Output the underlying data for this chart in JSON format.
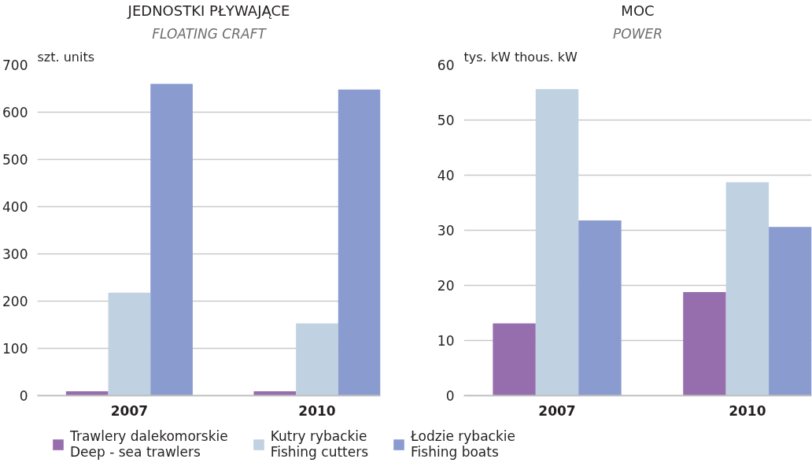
{
  "chart_data": [
    {
      "type": "bar",
      "title": "JEDNOSTKI PŁYWAJĄCE",
      "subtitle": "FLOATING CRAFT",
      "ylabel": "szt. units",
      "categories": [
        "2007",
        "2010"
      ],
      "series": [
        {
          "name": "Trawlery dalekomorskie\nDeep - sea trawlers",
          "color": "#966dad",
          "values": [
            9,
            9
          ]
        },
        {
          "name": "Kutry rybackie\nFishing cutters",
          "color": "#c0d1e1",
          "values": [
            218,
            153
          ]
        },
        {
          "name": "Łodzie rybackie\nFishing boats",
          "color": "#8a9bcf",
          "values": [
            660,
            648
          ]
        }
      ],
      "ylim": [
        0,
        700
      ],
      "yticks": [
        0,
        100,
        200,
        300,
        400,
        500,
        600,
        700
      ],
      "grid": "y",
      "legend": "bottom"
    },
    {
      "type": "bar",
      "title": "MOC",
      "subtitle": "POWER",
      "ylabel": "tys. kW thous. kW",
      "categories": [
        "2007",
        "2010"
      ],
      "series": [
        {
          "color": "#966dad",
          "values": [
            13.1,
            18.8
          ]
        },
        {
          "color": "#c0d1e1",
          "values": [
            55.6,
            38.7
          ]
        },
        {
          "color": "#8a9bcf",
          "values": [
            31.8,
            30.6
          ]
        }
      ],
      "ylim": [
        0,
        60
      ],
      "yticks": [
        0,
        10,
        20,
        30,
        40,
        50,
        60
      ],
      "grid": "y"
    }
  ]
}
